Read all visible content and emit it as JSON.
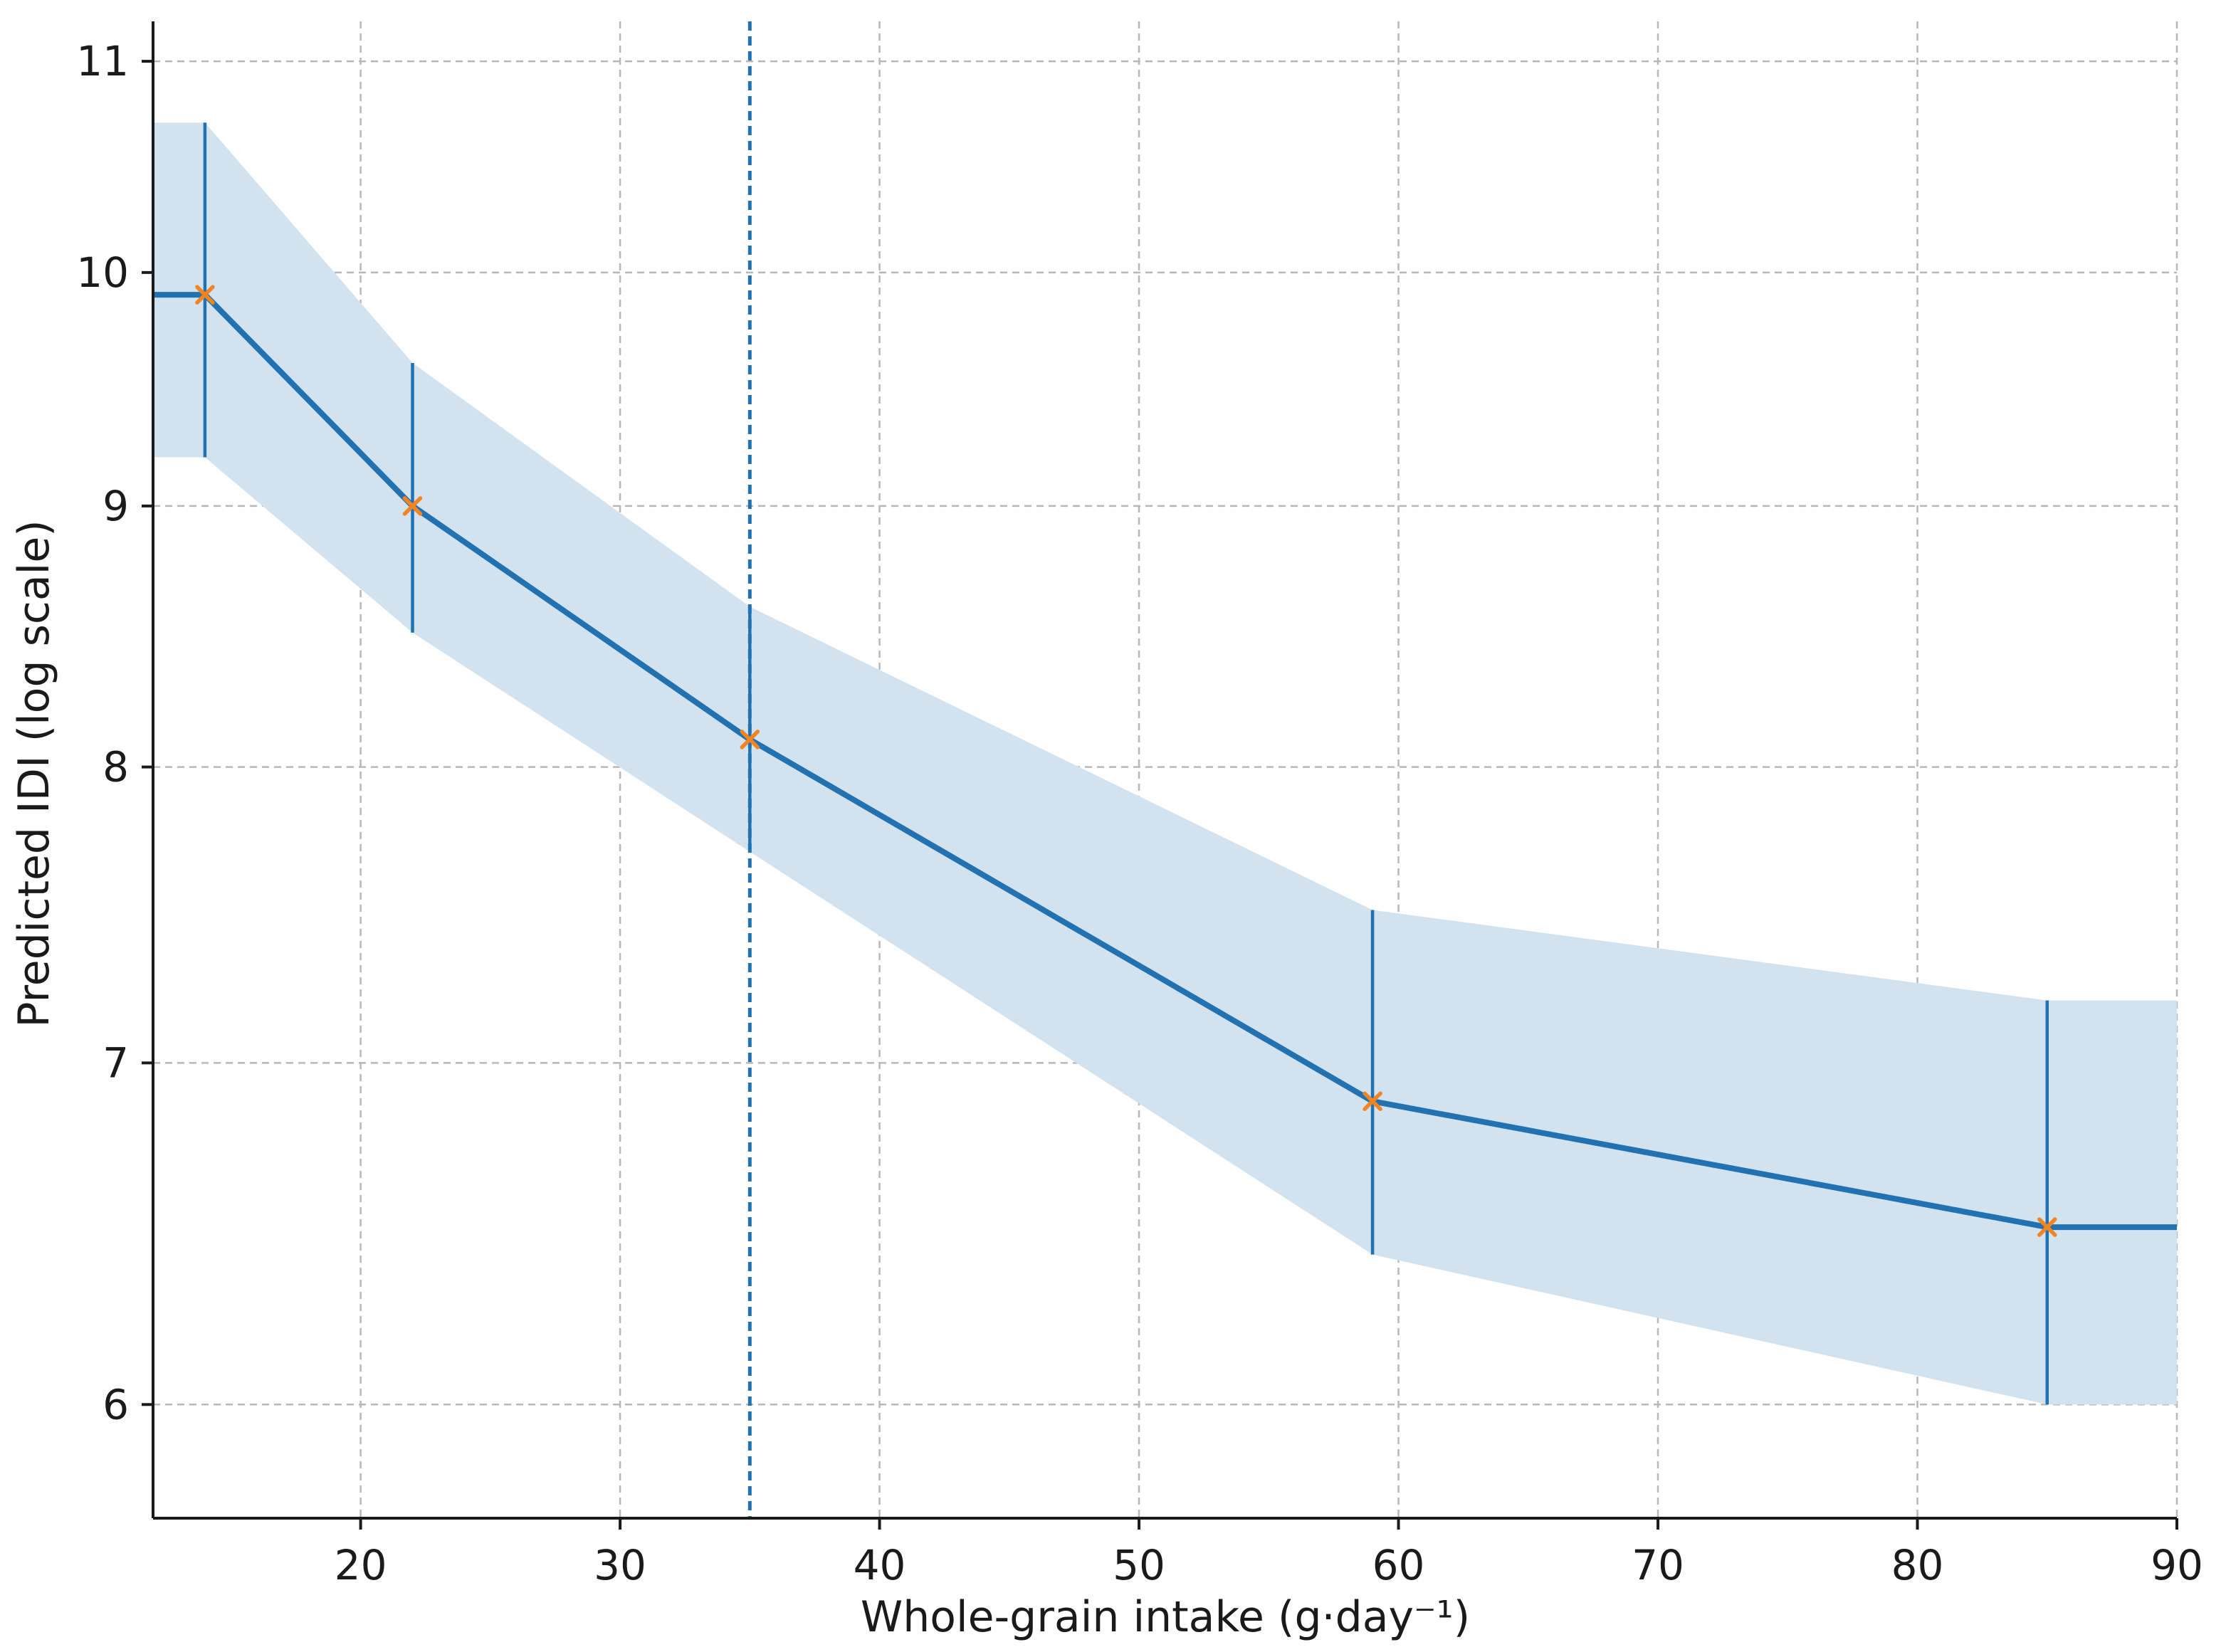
{
  "chart_data": {
    "type": "line",
    "xlabel": "Whole-grain intake (g·day⁻¹)",
    "ylabel": "Predicted IDI (log scale)",
    "y_scale": "log",
    "xlim": [
      12,
      90
    ],
    "ylim": [
      5.7,
      11.2
    ],
    "x_ticks": [
      20,
      30,
      40,
      50,
      60,
      70,
      80,
      90
    ],
    "y_ticks": [
      6,
      7,
      8,
      9,
      10,
      11
    ],
    "grid": true,
    "reference_line_x": 35,
    "series": [
      {
        "x": [
          12,
          14,
          22,
          35,
          59,
          85,
          90
        ],
        "y": [
          9.9,
          9.9,
          9.0,
          8.1,
          6.88,
          6.5,
          6.5
        ],
        "ci_lower": [
          9.2,
          9.2,
          8.5,
          7.7,
          6.42,
          6.0,
          6.0
        ],
        "ci_upper": [
          10.7,
          10.7,
          9.6,
          8.6,
          7.5,
          7.2,
          7.2
        ]
      }
    ],
    "points": {
      "x": [
        14,
        22,
        35,
        59,
        85
      ],
      "y": [
        9.9,
        9.0,
        8.1,
        6.88,
        6.5
      ],
      "err_lower": [
        9.2,
        8.5,
        7.7,
        6.42,
        6.0
      ],
      "err_upper": [
        10.7,
        9.6,
        8.6,
        7.5,
        7.2
      ]
    },
    "colors": {
      "line": "#2271b1",
      "band": "#d2e3ef",
      "marker": "#f28522",
      "grid": "#b8b8b8",
      "axis": "#1a1a1a"
    }
  }
}
